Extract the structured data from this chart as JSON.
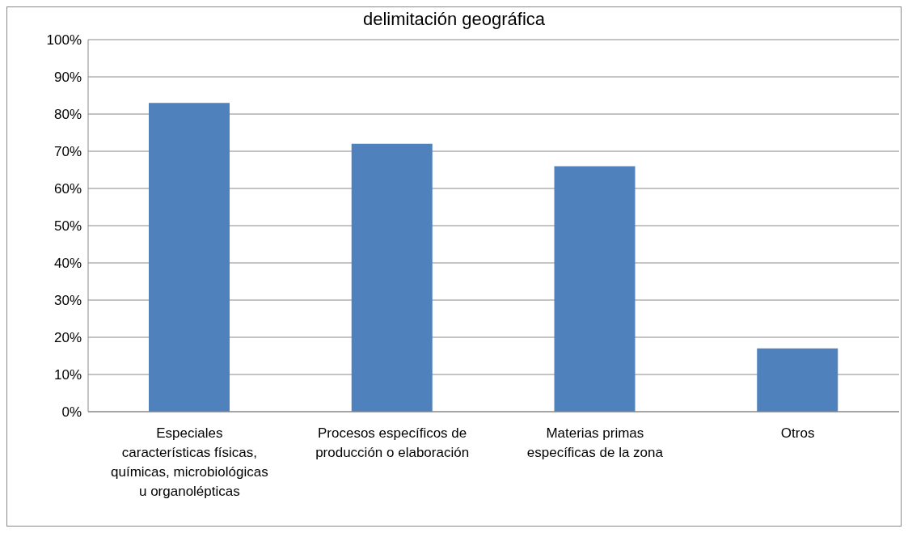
{
  "chart_data": {
    "type": "bar",
    "title": "delimitación geográfica",
    "categories": [
      "Especiales características físicas, químicas, microbiológicas u organolépticas",
      "Procesos específicos de producción o elaboración",
      "Materias primas específicas de la zona",
      "Otros"
    ],
    "values": [
      83,
      72,
      66,
      17
    ],
    "color": "#4f81bd",
    "ylim": [
      0,
      100
    ],
    "yticks": [
      {
        "value": 0,
        "label": "0%"
      },
      {
        "value": 10,
        "label": "10%"
      },
      {
        "value": 20,
        "label": "20%"
      },
      {
        "value": 30,
        "label": "30%"
      },
      {
        "value": 40,
        "label": "40%"
      },
      {
        "value": 50,
        "label": "50%"
      },
      {
        "value": 60,
        "label": "60%"
      },
      {
        "value": 70,
        "label": "70%"
      },
      {
        "value": 80,
        "label": "80%"
      },
      {
        "value": 90,
        "label": "90%"
      },
      {
        "value": 100,
        "label": "100%"
      }
    ],
    "grid": "y",
    "legend": false
  }
}
